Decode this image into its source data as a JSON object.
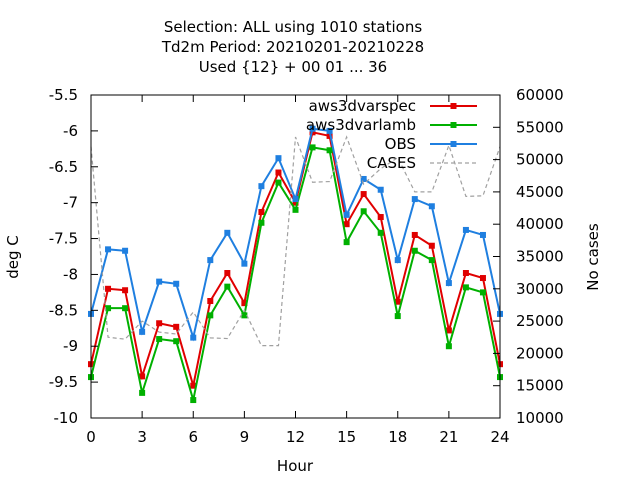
{
  "chart_data": {
    "type": "line",
    "title_lines": [
      "Selection: ALL using  1010 stations",
      "Td2m   Period: 20210201-20210228",
      "Used {12} + 00 01 ... 36"
    ],
    "xlabel": "Hour",
    "ylabel": "deg C",
    "y2label": "No cases",
    "xlim": [
      0,
      24
    ],
    "ylim": [
      -10,
      -5.5
    ],
    "y2lim": [
      10000,
      60000
    ],
    "xticks": [
      0,
      3,
      6,
      9,
      12,
      15,
      18,
      21,
      24
    ],
    "yticks": [
      -10,
      -9.5,
      -9,
      -8.5,
      -8,
      -7.5,
      -7,
      -6.5,
      -6,
      -5.5
    ],
    "y2ticks": [
      10000,
      15000,
      20000,
      25000,
      30000,
      35000,
      40000,
      45000,
      50000,
      55000,
      60000
    ],
    "grid": false,
    "legend_position": "top-right",
    "x": [
      0,
      1,
      2,
      3,
      4,
      5,
      6,
      7,
      8,
      9,
      10,
      11,
      12,
      13,
      14,
      15,
      16,
      17,
      18,
      19,
      20,
      21,
      22,
      23,
      24
    ],
    "series": [
      {
        "name": "aws3dvarspec",
        "color": "#e00000",
        "axis": "left",
        "style": "line-points",
        "values": [
          -9.25,
          -8.2,
          -8.22,
          -9.42,
          -8.68,
          -8.73,
          -9.55,
          -8.37,
          -7.98,
          -8.4,
          -7.13,
          -6.58,
          -7.0,
          -6.02,
          -6.07,
          -7.3,
          -6.88,
          -7.2,
          -8.38,
          -7.45,
          -7.6,
          -8.78,
          -7.98,
          -8.05,
          -9.25
        ]
      },
      {
        "name": "aws3dvarlamb",
        "color": "#00b000",
        "axis": "left",
        "style": "line-points",
        "values": [
          -9.43,
          -8.47,
          -8.47,
          -9.65,
          -8.9,
          -8.93,
          -9.75,
          -8.57,
          -8.17,
          -8.57,
          -7.28,
          -6.72,
          -7.1,
          -6.23,
          -6.27,
          -7.55,
          -7.12,
          -7.42,
          -8.58,
          -7.67,
          -7.8,
          -9.0,
          -8.18,
          -8.25,
          -9.43
        ]
      },
      {
        "name": "OBS",
        "color": "#1f7fe0",
        "axis": "left",
        "style": "line-points",
        "values": [
          -8.55,
          -7.65,
          -7.67,
          -8.8,
          -8.1,
          -8.13,
          -8.88,
          -7.8,
          -7.42,
          -7.85,
          -6.77,
          -6.38,
          -6.95,
          -5.97,
          -6.0,
          -7.17,
          -6.67,
          -6.82,
          -7.8,
          -6.95,
          -7.05,
          -8.12,
          -7.38,
          -7.45,
          -8.55
        ]
      },
      {
        "name": "CASES",
        "color": "#a0a0a0",
        "axis": "right",
        "style": "dashed",
        "values": [
          52000,
          22500,
          22200,
          25000,
          23300,
          23000,
          26400,
          22400,
          22300,
          26700,
          21200,
          21200,
          53500,
          46500,
          46600,
          53500,
          46200,
          48600,
          50300,
          45000,
          45000,
          52200,
          44300,
          44400,
          52000
        ]
      }
    ]
  }
}
